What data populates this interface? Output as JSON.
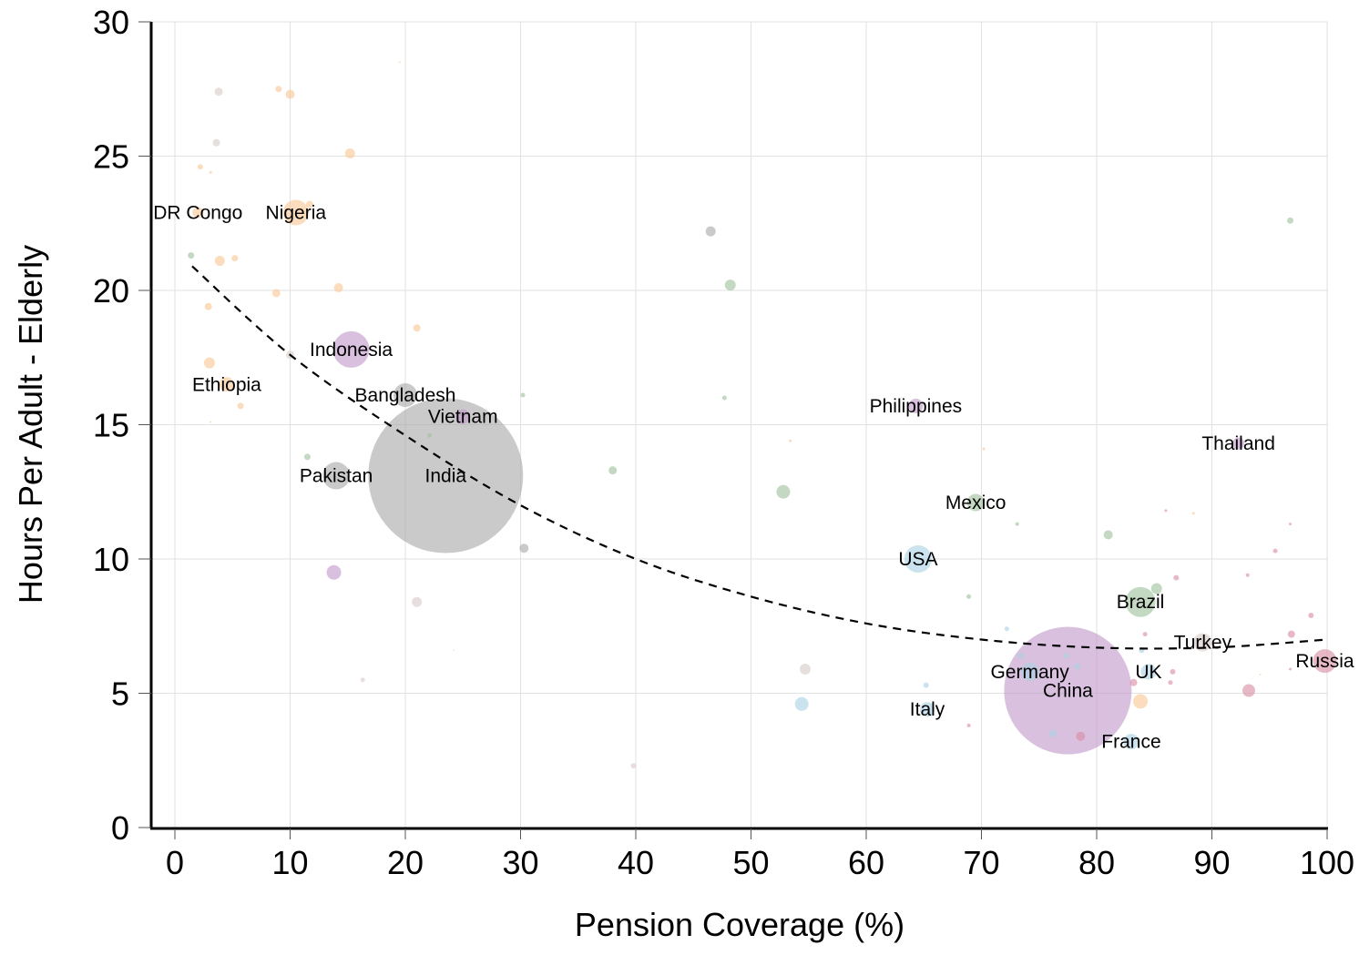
{
  "chart_data": {
    "type": "scatter",
    "subtype": "bubble",
    "title": "",
    "xlabel": "Pension Coverage (%)",
    "ylabel": "Hours Per Adult - Elderly",
    "xlim": [
      -2,
      101
    ],
    "ylim": [
      0,
      30
    ],
    "xticks": [
      0,
      10,
      20,
      30,
      40,
      50,
      60,
      70,
      80,
      90,
      100
    ],
    "yticks": [
      0,
      5,
      10,
      15,
      20,
      25,
      30
    ],
    "grid": true,
    "legend": "none",
    "group_colors": {
      "africa": "#f9c896",
      "south_asia": "#a9a9a9",
      "east_asia": "#c29ac9",
      "latin_america": "#9fc29c",
      "north_america_west_europe": "#a9d2e5",
      "east_europe": "#d98ea3",
      "middle_east": "#d8ccc8"
    },
    "trend_line": {
      "style": "dashed",
      "points": [
        [
          1.5,
          20.9
        ],
        [
          10,
          17.6
        ],
        [
          20,
          14.6
        ],
        [
          30,
          12.0
        ],
        [
          40,
          10.0
        ],
        [
          50,
          8.6
        ],
        [
          60,
          7.6
        ],
        [
          70,
          7.0
        ],
        [
          80,
          6.7
        ],
        [
          90,
          6.7
        ],
        [
          100,
          7.0
        ]
      ]
    },
    "points": [
      {
        "label": "DR Congo",
        "x": 2,
        "y": 22.9,
        "size": 12,
        "group": "africa"
      },
      {
        "label": "Nigeria",
        "x": 10.5,
        "y": 22.9,
        "size": 28,
        "group": "africa"
      },
      {
        "label": "Ethiopia",
        "x": 4.5,
        "y": 16.5,
        "size": 16,
        "group": "africa"
      },
      {
        "label": "Indonesia",
        "x": 15.3,
        "y": 17.8,
        "size": 40,
        "group": "east_asia"
      },
      {
        "label": "Bangladesh",
        "x": 20,
        "y": 16.1,
        "size": 26,
        "group": "south_asia"
      },
      {
        "label": "Vietnam",
        "x": 25,
        "y": 15.3,
        "size": 16,
        "group": "east_asia"
      },
      {
        "label": "Pakistan",
        "x": 14,
        "y": 13.1,
        "size": 30,
        "group": "south_asia"
      },
      {
        "label": "India",
        "x": 23.5,
        "y": 13.1,
        "size": 170,
        "group": "south_asia"
      },
      {
        "label": "Philippines",
        "x": 64.3,
        "y": 15.7,
        "size": 16,
        "group": "east_asia"
      },
      {
        "label": "Thailand",
        "x": 92.3,
        "y": 14.3,
        "size": 13,
        "group": "east_asia"
      },
      {
        "label": "Mexico",
        "x": 69.5,
        "y": 12.1,
        "size": 19,
        "group": "latin_america"
      },
      {
        "label": "USA",
        "x": 64.5,
        "y": 10,
        "size": 30,
        "group": "north_america_west_europe"
      },
      {
        "label": "Brazil",
        "x": 83.8,
        "y": 8.4,
        "size": 33,
        "group": "latin_america"
      },
      {
        "label": "Turkey",
        "x": 89.2,
        "y": 6.9,
        "size": 20,
        "group": "middle_east"
      },
      {
        "label": "Russia",
        "x": 99.8,
        "y": 6.2,
        "size": 26,
        "group": "east_europe"
      },
      {
        "label": "Germany",
        "x": 74.2,
        "y": 5.8,
        "size": 20,
        "group": "north_america_west_europe"
      },
      {
        "label": "China",
        "x": 77.5,
        "y": 5.1,
        "size": 140,
        "group": "east_asia"
      },
      {
        "label": "UK",
        "x": 84.5,
        "y": 5.8,
        "size": 17,
        "group": "north_america_west_europe"
      },
      {
        "label": "Italy",
        "x": 65.3,
        "y": 4.4,
        "size": 16,
        "group": "north_america_west_europe"
      },
      {
        "label": "France",
        "x": 83,
        "y": 3.2,
        "size": 17,
        "group": "north_america_west_europe"
      },
      {
        "label": "",
        "x": 3.8,
        "y": 27.4,
        "size": 9,
        "group": "middle_east"
      },
      {
        "label": "",
        "x": 9,
        "y": 27.5,
        "size": 7,
        "group": "africa"
      },
      {
        "label": "",
        "x": 10,
        "y": 27.3,
        "size": 10,
        "group": "africa"
      },
      {
        "label": "",
        "x": 19.5,
        "y": 28.5,
        "size": 2,
        "group": "africa"
      },
      {
        "label": "",
        "x": 3.6,
        "y": 25.5,
        "size": 8,
        "group": "middle_east"
      },
      {
        "label": "",
        "x": 15.2,
        "y": 25.1,
        "size": 11,
        "group": "africa"
      },
      {
        "label": "",
        "x": 2.2,
        "y": 24.6,
        "size": 6,
        "group": "africa"
      },
      {
        "label": "",
        "x": 3.1,
        "y": 24.4,
        "size": 3,
        "group": "africa"
      },
      {
        "label": "",
        "x": 11.7,
        "y": 23.2,
        "size": 8,
        "group": "africa"
      },
      {
        "label": "",
        "x": 1.4,
        "y": 21.3,
        "size": 7,
        "group": "latin_america"
      },
      {
        "label": "",
        "x": 3.9,
        "y": 21.1,
        "size": 11,
        "group": "africa"
      },
      {
        "label": "",
        "x": 5.2,
        "y": 21.2,
        "size": 7,
        "group": "africa"
      },
      {
        "label": "",
        "x": 14.2,
        "y": 20.1,
        "size": 10,
        "group": "africa"
      },
      {
        "label": "",
        "x": 8.8,
        "y": 19.9,
        "size": 9,
        "group": "africa"
      },
      {
        "label": "",
        "x": 2.9,
        "y": 19.4,
        "size": 8,
        "group": "africa"
      },
      {
        "label": "",
        "x": 21,
        "y": 18.6,
        "size": 8,
        "group": "africa"
      },
      {
        "label": "",
        "x": 10,
        "y": 17.6,
        "size": 9,
        "group": "middle_east"
      },
      {
        "label": "",
        "x": 3,
        "y": 17.3,
        "size": 12,
        "group": "africa"
      },
      {
        "label": "",
        "x": 5.7,
        "y": 15.7,
        "size": 7,
        "group": "africa"
      },
      {
        "label": "",
        "x": 3.1,
        "y": 15.1,
        "size": 2,
        "group": "africa"
      },
      {
        "label": "",
        "x": 46.5,
        "y": 22.2,
        "size": 11,
        "group": "south_asia"
      },
      {
        "label": "",
        "x": 48.2,
        "y": 20.2,
        "size": 12,
        "group": "latin_america"
      },
      {
        "label": "",
        "x": 96.8,
        "y": 22.6,
        "size": 7,
        "group": "latin_america"
      },
      {
        "label": "",
        "x": 30.2,
        "y": 16.1,
        "size": 5,
        "group": "latin_america"
      },
      {
        "label": "",
        "x": 47.7,
        "y": 16,
        "size": 5,
        "group": "latin_america"
      },
      {
        "label": "",
        "x": 11.5,
        "y": 13.8,
        "size": 7,
        "group": "latin_america"
      },
      {
        "label": "",
        "x": 22.1,
        "y": 14.6,
        "size": 5,
        "group": "latin_america"
      },
      {
        "label": "",
        "x": 38,
        "y": 13.3,
        "size": 9,
        "group": "latin_america"
      },
      {
        "label": "",
        "x": 52.8,
        "y": 12.5,
        "size": 15,
        "group": "latin_america"
      },
      {
        "label": "",
        "x": 53.4,
        "y": 14.4,
        "size": 3,
        "group": "africa"
      },
      {
        "label": "",
        "x": 70.2,
        "y": 14.1,
        "size": 3,
        "group": "africa"
      },
      {
        "label": "",
        "x": 73.1,
        "y": 11.3,
        "size": 4,
        "group": "latin_america"
      },
      {
        "label": "",
        "x": 81,
        "y": 10.9,
        "size": 10,
        "group": "latin_america"
      },
      {
        "label": "",
        "x": 86,
        "y": 11.8,
        "size": 3,
        "group": "east_europe"
      },
      {
        "label": "",
        "x": 88.4,
        "y": 11.7,
        "size": 3,
        "group": "africa"
      },
      {
        "label": "",
        "x": 96.8,
        "y": 11.3,
        "size": 3,
        "group": "east_europe"
      },
      {
        "label": "",
        "x": 95.5,
        "y": 10.3,
        "size": 5,
        "group": "east_europe"
      },
      {
        "label": "",
        "x": 93.1,
        "y": 9.4,
        "size": 4,
        "group": "east_europe"
      },
      {
        "label": "",
        "x": 86.9,
        "y": 9.3,
        "size": 6,
        "group": "east_europe"
      },
      {
        "label": "",
        "x": 85.2,
        "y": 8.9,
        "size": 12,
        "group": "latin_america"
      },
      {
        "label": "",
        "x": 68.9,
        "y": 8.6,
        "size": 5,
        "group": "latin_america"
      },
      {
        "label": "",
        "x": 30.3,
        "y": 10.4,
        "size": 10,
        "group": "south_asia"
      },
      {
        "label": "",
        "x": 13.8,
        "y": 9.5,
        "size": 16,
        "group": "east_asia"
      },
      {
        "label": "",
        "x": 21,
        "y": 8.4,
        "size": 11,
        "group": "middle_east"
      },
      {
        "label": "",
        "x": 16.3,
        "y": 5.5,
        "size": 5,
        "group": "middle_east"
      },
      {
        "label": "",
        "x": 24.2,
        "y": 6.6,
        "size": 1.5,
        "group": "north_america_west_europe"
      },
      {
        "label": "",
        "x": 39.8,
        "y": 2.3,
        "size": 6,
        "group": "middle_east"
      },
      {
        "label": "",
        "x": 54.7,
        "y": 5.9,
        "size": 12,
        "group": "middle_east"
      },
      {
        "label": "",
        "x": 54.4,
        "y": 4.6,
        "size": 15,
        "group": "north_america_west_europe"
      },
      {
        "label": "",
        "x": 65.2,
        "y": 5.3,
        "size": 6,
        "group": "north_america_west_europe"
      },
      {
        "label": "",
        "x": 68.9,
        "y": 3.8,
        "size": 4,
        "group": "east_europe"
      },
      {
        "label": "",
        "x": 72.2,
        "y": 7.4,
        "size": 5,
        "group": "north_america_west_europe"
      },
      {
        "label": "",
        "x": 98.6,
        "y": 7.9,
        "size": 6,
        "group": "east_europe"
      },
      {
        "label": "",
        "x": 96.9,
        "y": 7.2,
        "size": 8,
        "group": "east_europe"
      },
      {
        "label": "",
        "x": 86.6,
        "y": 5.8,
        "size": 6,
        "group": "east_europe"
      },
      {
        "label": "",
        "x": 84.2,
        "y": 7.2,
        "size": 5,
        "group": "east_europe"
      },
      {
        "label": "",
        "x": 83.8,
        "y": 4.7,
        "size": 16,
        "group": "africa"
      },
      {
        "label": "",
        "x": 83.2,
        "y": 5.4,
        "size": 8,
        "group": "east_europe"
      },
      {
        "label": "",
        "x": 86.4,
        "y": 5.4,
        "size": 5,
        "group": "east_europe"
      },
      {
        "label": "",
        "x": 93.2,
        "y": 5.1,
        "size": 14,
        "group": "east_europe"
      },
      {
        "label": "",
        "x": 96.8,
        "y": 5.9,
        "size": 3,
        "group": "east_europe"
      },
      {
        "label": "",
        "x": 94.2,
        "y": 5.7,
        "size": 2,
        "group": "africa"
      },
      {
        "label": "",
        "x": 78.6,
        "y": 3.4,
        "size": 10,
        "group": "east_europe"
      },
      {
        "label": "",
        "x": 76.2,
        "y": 3.5,
        "size": 8,
        "group": "north_america_west_europe"
      },
      {
        "label": "",
        "x": 73.4,
        "y": 6.4,
        "size": 7,
        "group": "north_america_west_europe"
      },
      {
        "label": "",
        "x": 77.4,
        "y": 6.4,
        "size": 6,
        "group": "north_america_west_europe"
      },
      {
        "label": "",
        "x": 78.3,
        "y": 6,
        "size": 7,
        "group": "north_america_west_europe"
      },
      {
        "label": "",
        "x": 83.9,
        "y": 6.6,
        "size": 6,
        "group": "north_america_west_europe"
      }
    ]
  }
}
